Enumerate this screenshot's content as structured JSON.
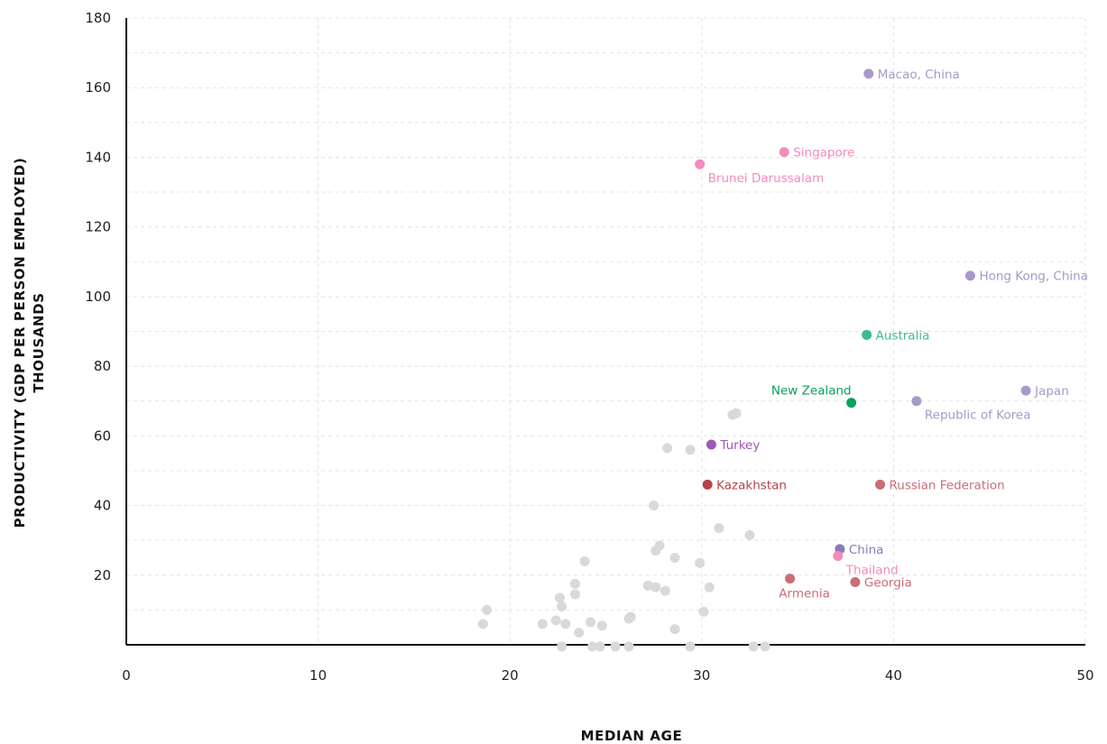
{
  "chart_data": {
    "type": "scatter",
    "xlabel": "MEDIAN AGE",
    "ylabel_line1": "PRODUCTIVITY (GDP PER PERSON EMPLOYED)",
    "ylabel_line2": "THOUSANDS",
    "xlim": [
      0,
      50
    ],
    "ylim": [
      0,
      180
    ],
    "x_ticks": [
      0,
      10,
      20,
      30,
      40,
      50
    ],
    "y_ticks": [
      20,
      40,
      60,
      80,
      100,
      120,
      140,
      160,
      180
    ],
    "grid": true,
    "colors": {
      "east_asia": "#a79ac8",
      "southeast_asia": "#f38bbb",
      "pacific": "#3dbb8a",
      "new_zealand": "#0aa061",
      "turkey": "#a057b5",
      "central_asia": "#b8404a",
      "caucasus_russia": "#cc6c78",
      "china": "#8a7bb8",
      "other": "#d9d9d9"
    },
    "labeled_points": [
      {
        "label": "Macao, China",
        "x": 38.7,
        "y": 164.0,
        "color_key": "east_asia",
        "label_pos": "right"
      },
      {
        "label": "Singapore",
        "x": 34.3,
        "y": 141.5,
        "color_key": "southeast_asia",
        "label_pos": "right"
      },
      {
        "label": "Brunei Darussalam",
        "x": 29.9,
        "y": 138.0,
        "color_key": "southeast_asia",
        "label_pos": "below-right"
      },
      {
        "label": "Hong Kong, China",
        "x": 44.0,
        "y": 106.0,
        "color_key": "east_asia",
        "label_pos": "right"
      },
      {
        "label": "Australia",
        "x": 38.6,
        "y": 89.0,
        "color_key": "pacific",
        "label_pos": "right"
      },
      {
        "label": "New Zealand",
        "x": 37.8,
        "y": 69.5,
        "color_key": "new_zealand",
        "label_pos": "above-left"
      },
      {
        "label": "Japan",
        "x": 46.9,
        "y": 73.0,
        "color_key": "east_asia",
        "label_pos": "right"
      },
      {
        "label": "Republic of Korea",
        "x": 41.2,
        "y": 70.0,
        "color_key": "east_asia",
        "label_pos": "below-right"
      },
      {
        "label": "Turkey",
        "x": 30.5,
        "y": 57.5,
        "color_key": "turkey",
        "label_pos": "right"
      },
      {
        "label": "Kazakhstan",
        "x": 30.3,
        "y": 46.0,
        "color_key": "central_asia",
        "label_pos": "right"
      },
      {
        "label": "Russian Federation",
        "x": 39.3,
        "y": 46.0,
        "color_key": "caucasus_russia",
        "label_pos": "right"
      },
      {
        "label": "China",
        "x": 37.2,
        "y": 27.5,
        "color_key": "china",
        "label_pos": "right"
      },
      {
        "label": "Thailand",
        "x": 37.1,
        "y": 25.5,
        "color_key": "southeast_asia",
        "label_pos": "below-right"
      },
      {
        "label": "Armenia",
        "x": 34.6,
        "y": 19.0,
        "color_key": "caucasus_russia",
        "label_pos": "below"
      },
      {
        "label": "Georgia",
        "x": 38.0,
        "y": 18.0,
        "color_key": "caucasus_russia",
        "label_pos": "right"
      }
    ],
    "other_points": [
      [
        31.6,
        66.0
      ],
      [
        31.8,
        66.5
      ],
      [
        28.2,
        56.5
      ],
      [
        29.4,
        56.0
      ],
      [
        27.5,
        40.0
      ],
      [
        30.9,
        33.5
      ],
      [
        32.5,
        31.5
      ],
      [
        27.8,
        28.5
      ],
      [
        27.6,
        27.0
      ],
      [
        28.6,
        25.0
      ],
      [
        29.9,
        23.5
      ],
      [
        23.9,
        24.0
      ],
      [
        23.4,
        17.5
      ],
      [
        27.2,
        17.0
      ],
      [
        27.6,
        16.5
      ],
      [
        30.4,
        16.5
      ],
      [
        28.1,
        15.5
      ],
      [
        23.4,
        14.5
      ],
      [
        22.6,
        13.5
      ],
      [
        22.7,
        11.0
      ],
      [
        18.8,
        10.0
      ],
      [
        30.1,
        9.5
      ],
      [
        26.2,
        7.5
      ],
      [
        26.3,
        8.0
      ],
      [
        22.4,
        7.0
      ],
      [
        24.2,
        6.5
      ],
      [
        21.7,
        6.0
      ],
      [
        22.9,
        6.0
      ],
      [
        24.8,
        5.5
      ],
      [
        18.6,
        6.0
      ],
      [
        28.6,
        4.5
      ],
      [
        23.6,
        3.5
      ],
      [
        22.7,
        -0.5
      ],
      [
        24.3,
        -0.5
      ],
      [
        24.7,
        -0.5
      ],
      [
        25.5,
        -0.5
      ],
      [
        26.2,
        -0.5
      ],
      [
        29.4,
        -0.5
      ],
      [
        32.7,
        -0.5
      ],
      [
        33.3,
        -0.5
      ]
    ]
  }
}
